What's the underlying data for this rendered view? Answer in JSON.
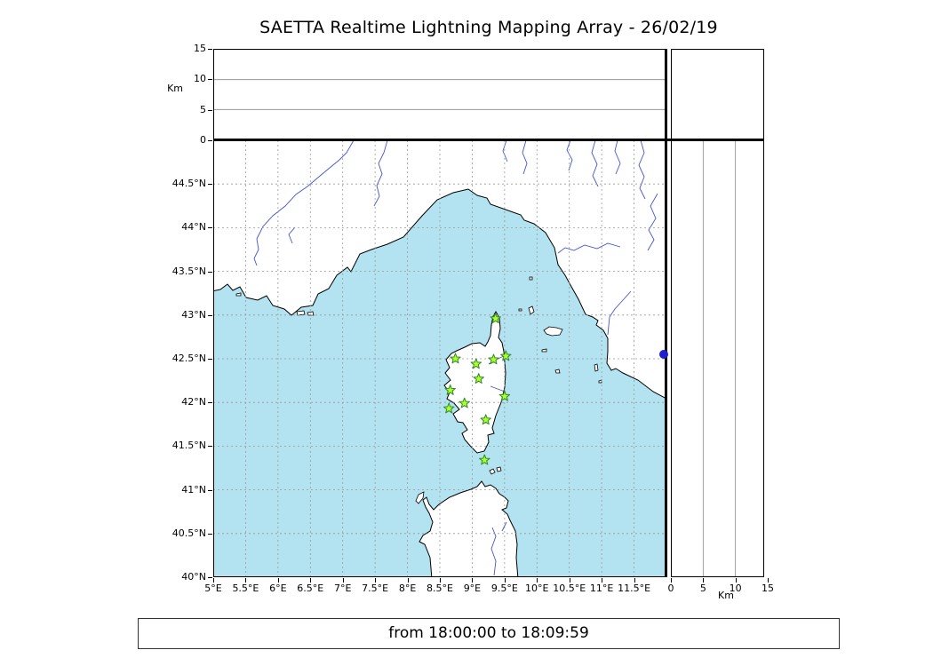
{
  "title": "SAETTA Realtime Lightning Mapping Array - 26/02/19",
  "time_bar": {
    "text": "from 18:00:00 to 18:09:59"
  },
  "axes": {
    "km_label_top": "Km",
    "km_label_right": "Km",
    "alt_ticks": [
      "0",
      "5",
      "10",
      "15"
    ],
    "lat_ticks": [
      "40°N",
      "40.5°N",
      "41°N",
      "41.5°N",
      "42°N",
      "42.5°N",
      "43°N",
      "43.5°N",
      "44°N",
      "44.5°N"
    ],
    "lon_ticks": [
      "5°E",
      "5.5°E",
      "6°E",
      "6.5°E",
      "7°E",
      "7.5°E",
      "8°E",
      "8.5°E",
      "9°E",
      "9.5°E",
      "10°E",
      "10.5°E",
      "11°E",
      "11.5°E"
    ]
  },
  "chart_data": {
    "type": "scatter",
    "title": "SAETTA Realtime Lightning Mapping Array - 26/02/19",
    "subtitle_time_window": "from 18:00:00 to 18:09:59",
    "map_extent": {
      "lon_range": [
        5,
        12
      ],
      "lat_range": [
        40,
        45
      ]
    },
    "altitude_axis_km": {
      "range": [
        0,
        15
      ],
      "ticks": [
        0,
        5,
        10,
        15
      ],
      "gridlines_km": [
        5,
        10
      ]
    },
    "grid": {
      "on": true,
      "lon_step_deg": 0.5,
      "lat_step_deg": 0.5
    },
    "stations": [
      {
        "lon": 9.36,
        "lat": 42.96
      },
      {
        "lon": 8.74,
        "lat": 42.5
      },
      {
        "lon": 9.06,
        "lat": 42.44
      },
      {
        "lon": 9.33,
        "lat": 42.49
      },
      {
        "lon": 9.52,
        "lat": 42.53
      },
      {
        "lon": 9.1,
        "lat": 42.27
      },
      {
        "lon": 8.66,
        "lat": 42.14
      },
      {
        "lon": 9.5,
        "lat": 42.07
      },
      {
        "lon": 8.64,
        "lat": 41.93
      },
      {
        "lon": 8.88,
        "lat": 41.99
      },
      {
        "lon": 9.21,
        "lat": 41.8
      },
      {
        "lon": 9.19,
        "lat": 41.34
      }
    ],
    "sources": [
      {
        "lon": 11.96,
        "lat": 42.55,
        "alt_km": 0
      }
    ],
    "colors": {
      "sea": "#b3e3f1",
      "land": "#ffffff",
      "coast": "#000000",
      "river": "#4455cc",
      "grid": "#999999",
      "station_fill": "#adff2f",
      "station_edge": "#2e8b22",
      "source_dot": "#2121cc"
    }
  }
}
